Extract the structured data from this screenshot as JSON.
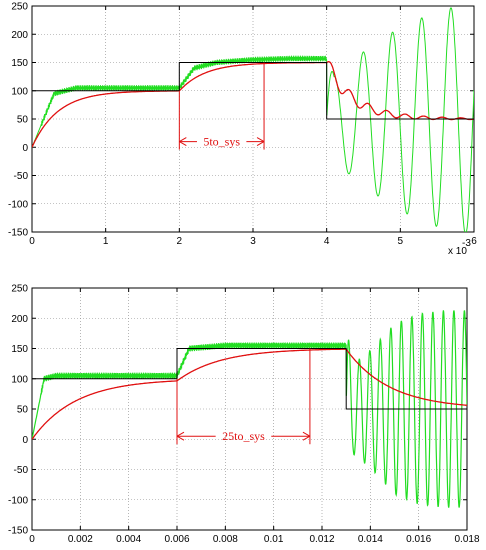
{
  "colors": {
    "reference": "#000000",
    "response_red": "#e01010",
    "response_green": "#22dd22",
    "grid": "#888888",
    "annotation": "#e01010"
  },
  "chart_data": [
    {
      "type": "line",
      "title": "",
      "xlabel": "",
      "ylabel": "",
      "xlim": [
        0,
        6
      ],
      "ylim": [
        -150,
        250
      ],
      "x_multiplier_label": "x 10",
      "x_multiplier_exp": "-3",
      "xticks": [
        0,
        1,
        2,
        3,
        4,
        5,
        6
      ],
      "yticks": [
        -150,
        -100,
        -50,
        0,
        50,
        100,
        150,
        200,
        250
      ],
      "grid": true,
      "series": [
        {
          "role": "reference",
          "color": "#000000",
          "x": [
            0,
            2,
            2,
            4,
            4,
            6
          ],
          "y": [
            100,
            100,
            150,
            150,
            50,
            50
          ]
        },
        {
          "role": "response",
          "color": "#e01010",
          "settle_levels": [
            100,
            150,
            50
          ],
          "step_times": [
            0,
            2,
            4
          ],
          "time_constant": 0.35,
          "x": [
            0,
            0.2,
            0.4,
            0.6,
            0.8,
            1.0,
            1.5,
            2.0,
            2.2,
            2.5,
            3.0,
            3.5,
            4.0,
            4.2,
            4.5,
            5.0,
            5.5,
            6.0
          ],
          "y": [
            0,
            70,
            80,
            92,
            96,
            98,
            100,
            100,
            125,
            140,
            148,
            150,
            150,
            80,
            55,
            48,
            52,
            50
          ]
        },
        {
          "role": "response",
          "color": "#22dd22",
          "x": [
            0,
            0.3,
            0.6,
            1.0,
            1.5,
            2.0,
            2.2,
            2.5,
            3.0,
            3.5,
            4.0,
            4.1,
            4.5,
            5.0,
            5.5,
            6.0
          ],
          "y": [
            0,
            95,
            105,
            105,
            105,
            105,
            140,
            150,
            155,
            157,
            157,
            100,
            140,
            180,
            205,
            220
          ]
        }
      ],
      "annotation": {
        "text": "5to_sys",
        "x_start": 2.0,
        "x_end": 3.15,
        "y_arrow": 10,
        "y_top_start": 100,
        "y_top_end": 150
      }
    },
    {
      "type": "line",
      "title": "",
      "xlabel": "",
      "ylabel": "",
      "xlim": [
        0,
        0.018
      ],
      "ylim": [
        -150,
        250
      ],
      "xticks": [
        0,
        0.002,
        0.004,
        0.006,
        0.008,
        0.01,
        0.012,
        0.014,
        0.016,
        0.018
      ],
      "xtick_labels": [
        "0",
        "0.002",
        "0.004",
        "0.006",
        "0.008",
        "0.01",
        "0.012",
        "0.014",
        "0.016",
        "0.018"
      ],
      "yticks": [
        -150,
        -100,
        -50,
        0,
        50,
        100,
        150,
        200,
        250
      ],
      "grid": true,
      "series": [
        {
          "role": "reference",
          "color": "#000000",
          "x": [
            0,
            0.006,
            0.006,
            0.013,
            0.013,
            0.018
          ],
          "y": [
            100,
            100,
            150,
            150,
            50,
            50
          ]
        },
        {
          "role": "response",
          "color": "#e01010",
          "settle_levels": [
            100,
            150,
            50
          ],
          "step_times": [
            0,
            0.006,
            0.013
          ],
          "time_constant": 0.0018,
          "x": [
            0,
            0.001,
            0.002,
            0.003,
            0.004,
            0.006,
            0.007,
            0.008,
            0.009,
            0.01,
            0.011,
            0.012,
            0.013,
            0.014,
            0.015,
            0.016,
            0.018
          ],
          "y": [
            0,
            60,
            80,
            90,
            95,
            100,
            115,
            127,
            136,
            142,
            146,
            148,
            150,
            80,
            60,
            52,
            50
          ]
        },
        {
          "role": "response",
          "color": "#22dd22",
          "x": [
            0,
            0.0005,
            0.001,
            0.003,
            0.006,
            0.0065,
            0.008,
            0.01,
            0.013,
            0.0133,
            0.014,
            0.015,
            0.016,
            0.017,
            0.018
          ],
          "y": [
            0,
            100,
            105,
            105,
            105,
            150,
            155,
            155,
            155,
            100,
            120,
            160,
            175,
            180,
            180
          ]
        }
      ],
      "annotation": {
        "text": "25to_sys",
        "x_start": 0.006,
        "x_end": 0.0115,
        "y_arrow": 5,
        "y_top_start": 100,
        "y_top_end": 150
      }
    }
  ]
}
